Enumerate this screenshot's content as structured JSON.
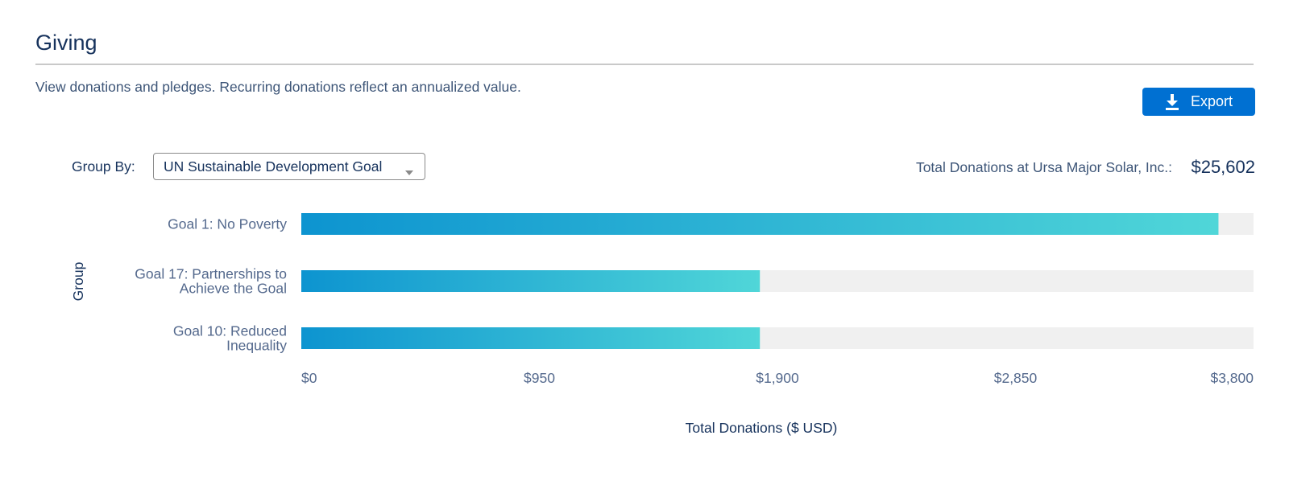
{
  "header": {
    "title": "Giving",
    "description": "View donations and pledges. Recurring donations reflect an annualized value."
  },
  "toolbar": {
    "export_label": "Export",
    "export_icon": "download-icon"
  },
  "filters": {
    "group_by_label": "Group By:",
    "group_by_value": "UN Sustainable Development Goal"
  },
  "summary": {
    "total_label": "Total Donations at Ursa Major Solar, Inc.:",
    "total_value": "$25,602"
  },
  "colors": {
    "accent": "#0070d2",
    "bar_start": "#0d94d0",
    "bar_end": "#50d6d8",
    "track": "#f0f0f0"
  },
  "chart_data": {
    "type": "bar",
    "orientation": "horizontal",
    "categories": [
      [
        "Goal 1: No Poverty"
      ],
      [
        "Goal 17: Partnerships to",
        "Achieve the Goal"
      ],
      [
        "Goal 10: Reduced",
        "Inequality"
      ]
    ],
    "values": [
      3660,
      1830,
      1830
    ],
    "xlim": [
      0,
      3800
    ],
    "x_ticks": [
      0,
      950,
      1900,
      2850,
      3800
    ],
    "x_tick_labels": [
      "$0",
      "$950",
      "$1,900",
      "$2,850",
      "$3,800"
    ],
    "xlabel": "Total Donations ($ USD)",
    "ylabel": "Group",
    "grid": false
  }
}
